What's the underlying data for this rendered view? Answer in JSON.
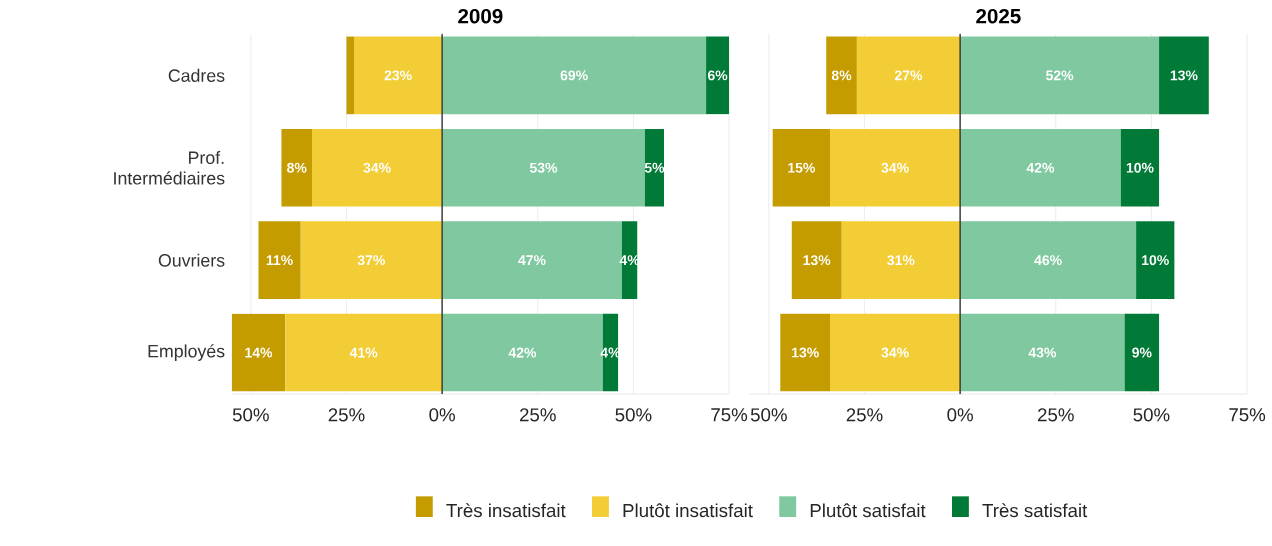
{
  "chart_data": [
    {
      "type": "bar",
      "orientation": "horizontal",
      "title": "2009",
      "categories": [
        "Cadres",
        "Prof. Intermédiaires",
        "Ouvriers",
        "Employés"
      ],
      "series": [
        {
          "name": "Plutôt insatisfait",
          "color": "#f2cd35",
          "values": [
            23,
            34,
            37,
            41
          ],
          "base": [
            -23,
            -34,
            -37,
            -41
          ],
          "value_labels": [
            "23%",
            "34%",
            "37%",
            "41%"
          ]
        },
        {
          "name": "Très insatisfait",
          "color": "#c49c00",
          "values": [
            2,
            8,
            11,
            14
          ],
          "base": [
            -25,
            -42,
            -48,
            -55
          ],
          "value_labels": [
            null,
            "8%",
            "11%",
            "14%"
          ]
        },
        {
          "name": "Plutôt satisfait",
          "color": "#80c9a0",
          "values": [
            69,
            53,
            47,
            42
          ],
          "base": [
            0,
            0,
            0,
            0
          ],
          "value_labels": [
            "69%",
            "53%",
            "47%",
            "42%"
          ]
        },
        {
          "name": "Très satisfait",
          "color": "#007a36",
          "values": [
            6,
            5,
            4,
            4
          ],
          "base": [
            69,
            53,
            47,
            42
          ],
          "value_labels": [
            "6%",
            "5%",
            "4%",
            "4%"
          ]
        }
      ],
      "xlim": [
        -55,
        75
      ],
      "xticks": [
        {
          "value": -50,
          "label": "50%"
        },
        {
          "value": -25,
          "label": "25%"
        },
        {
          "value": 0,
          "label": "0%"
        },
        {
          "value": 25,
          "label": "25%"
        },
        {
          "value": 50,
          "label": "50%"
        },
        {
          "value": 75,
          "label": "75%"
        }
      ],
      "grid": "x",
      "legend": "bottom",
      "ref_lines": [
        {
          "axis": "x",
          "value": 0,
          "color": "#333333"
        }
      ]
    },
    {
      "type": "bar",
      "orientation": "horizontal",
      "title": "2025",
      "tick_labels": "x",
      "series": [
        {
          "color": "#f2cd35",
          "values": [
            27,
            34,
            31,
            34
          ],
          "base": [
            -27,
            -34,
            -31,
            -34
          ],
          "value_labels": [
            "27%",
            "34%",
            "31%",
            "34%"
          ]
        },
        {
          "color": "#c49c00",
          "values": [
            8,
            15,
            13,
            13
          ],
          "base": [
            -35,
            -49,
            -44,
            -47
          ],
          "value_labels": [
            "8%",
            "15%",
            "13%",
            "13%"
          ]
        },
        {
          "color": "#80c9a0",
          "values": [
            52,
            42,
            46,
            43
          ],
          "base": [
            0,
            0,
            0,
            0
          ],
          "value_labels": [
            "52%",
            "42%",
            "46%",
            "43%"
          ]
        },
        {
          "color": "#007a36",
          "values": [
            13,
            10,
            10,
            9
          ],
          "base": [
            52,
            42,
            46,
            43
          ],
          "value_labels": [
            "13%",
            "10%",
            "10%",
            "9%"
          ]
        }
      ],
      "xlim": [
        -55,
        75
      ],
      "xticks": [
        {
          "value": -50,
          "label": "50%"
        },
        {
          "value": -25,
          "label": "25%"
        },
        {
          "value": 0,
          "label": "0%"
        },
        {
          "value": 25,
          "label": "25%"
        },
        {
          "value": 50,
          "label": "50%"
        },
        {
          "value": 75,
          "label": "75%"
        }
      ],
      "grid": "x",
      "ref_lines": [
        {
          "axis": "x",
          "value": 0,
          "color": "#333333"
        }
      ]
    }
  ]
}
